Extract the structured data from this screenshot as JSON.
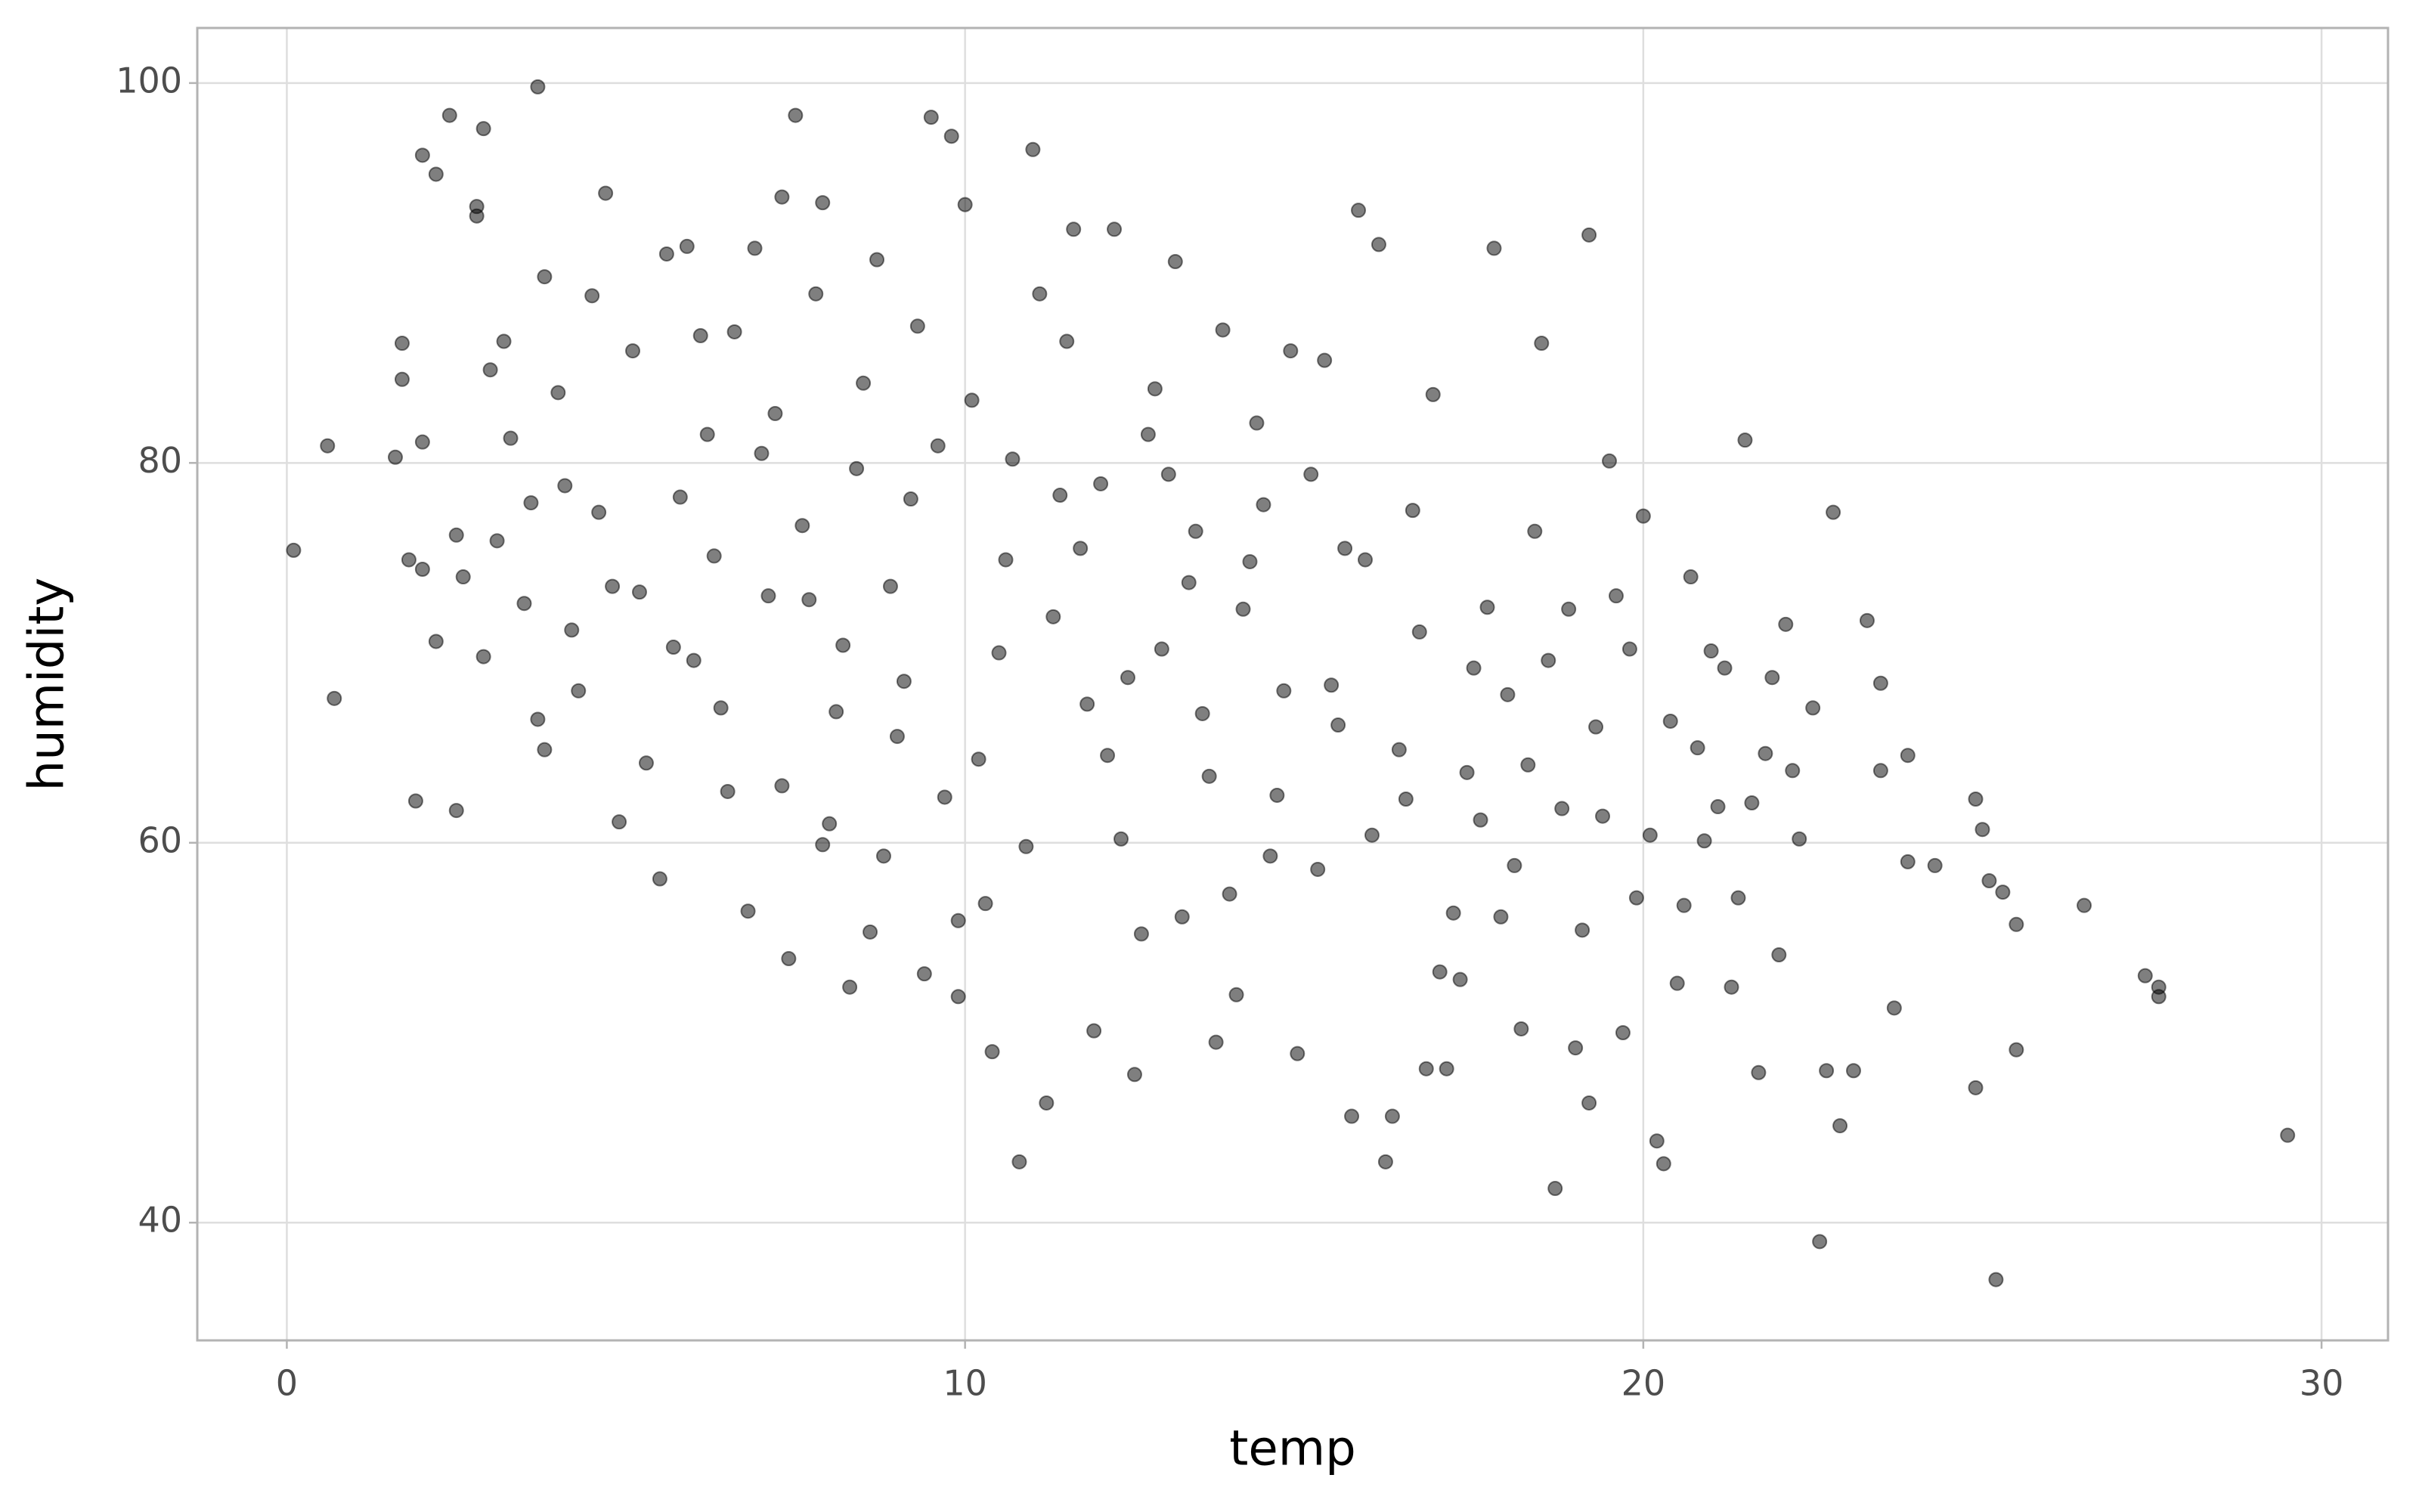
{
  "chart_data": {
    "type": "scatter",
    "xlabel": "temp",
    "ylabel": "humidity",
    "color": "#000000",
    "opacity": 0.5,
    "grid": true,
    "xlim": [
      -1.32,
      30.98
    ],
    "ylim": [
      33.8,
      102.9
    ],
    "xticks": [
      0,
      10,
      20,
      30
    ],
    "yticks": [
      40,
      60,
      80,
      100
    ],
    "x": [
      0.1,
      0.6,
      0.7,
      1.6,
      1.7,
      1.7,
      1.8,
      1.9,
      2.0,
      2.0,
      2.0,
      2.2,
      2.2,
      2.4,
      2.5,
      2.5,
      2.6,
      2.8,
      2.8,
      2.9,
      2.9,
      3.0,
      3.2,
      3.3,
      3.6,
      3.7,
      3.8,
      3.7,
      3.8,
      4.0,
      4.2,
      4.5,
      4.6,
      4.7,
      4.9,
      4.3,
      3.5,
      4.1,
      4.8,
      3.1,
      5.1,
      5.2,
      5.3,
      5.5,
      5.6,
      5.7,
      5.9,
      6.1,
      6.3,
      6.4,
      6.5,
      6.6,
      6.8,
      6.9,
      7.0,
      7.1,
      7.3,
      7.3,
      7.4,
      7.5,
      7.6,
      7.8,
      7.9,
      8.0,
      8.2,
      8.3,
      8.5,
      8.6,
      8.7,
      8.9,
      9.0,
      9.2,
      9.4,
      9.5,
      9.6,
      9.8,
      9.9,
      9.9,
      9.7,
      8.8,
      5.8,
      6.2,
      7.2,
      7.7,
      8.1,
      8.4,
      9.1,
      9.3,
      6.0,
      7.9,
      10.1,
      10.2,
      10.4,
      10.6,
      10.8,
      10.9,
      11.0,
      11.3,
      11.2,
      11.5,
      11.6,
      11.8,
      11.9,
      12.0,
      12.2,
      12.3,
      12.5,
      12.7,
      12.9,
      13.1,
      13.2,
      13.4,
      13.6,
      13.8,
      14.0,
      14.1,
      14.3,
      14.5,
      14.7,
      14.9,
      10.3,
      10.7,
      11.1,
      11.7,
      12.4,
      12.8,
      13.3,
      13.9,
      14.4,
      14.8,
      10.0,
      10.5,
      11.4,
      12.1,
      12.6,
      13.0,
      13.5,
      14.2,
      14.6,
      13.7,
      15.1,
      15.3,
      15.5,
      15.7,
      15.9,
      16.1,
      16.3,
      16.5,
      16.7,
      16.9,
      17.1,
      17.3,
      17.5,
      17.7,
      17.9,
      18.1,
      18.3,
      18.5,
      18.7,
      18.9,
      19.1,
      19.3,
      19.5,
      19.7,
      19.9,
      15.2,
      15.8,
      16.2,
      16.8,
      17.2,
      17.8,
      18.2,
      18.4,
      18.8,
      19.2,
      19.6,
      15.4,
      16.0,
      16.6,
      17.6,
      18.0,
      18.6,
      19.0,
      19.4,
      19.8,
      15.6,
      16.4,
      17.0,
      17.4,
      19.2,
      20.1,
      20.3,
      20.5,
      20.7,
      20.9,
      21.1,
      21.3,
      21.5,
      21.7,
      21.9,
      22.1,
      22.3,
      22.5,
      22.6,
      22.7,
      22.8,
      23.1,
      23.3,
      23.5,
      23.7,
      23.9,
      24.3,
      23.9,
      20.2,
      20.6,
      21.0,
      21.4,
      22.0,
      22.9,
      23.5,
      20.4,
      20.8,
      21.2,
      21.6,
      22.2,
      24.9,
      24.9,
      25.0,
      20.0,
      21.8,
      25.2,
      25.1,
      25.3,
      25.5,
      25.5,
      26.5,
      27.4,
      27.6,
      27.6,
      29.5
    ],
    "values": [
      75.4,
      80.9,
      67.6,
      80.3,
      84.4,
      86.3,
      74.9,
      62.2,
      74.4,
      81.1,
      96.2,
      95.2,
      70.6,
      98.3,
      76.2,
      61.7,
      74.0,
      93.5,
      93.0,
      97.6,
      69.8,
      84.9,
      86.4,
      81.3,
      77.9,
      66.5,
      64.9,
      99.8,
      89.8,
      83.7,
      71.2,
      88.8,
      77.4,
      94.2,
      61.1,
      68.0,
      72.6,
      78.8,
      73.5,
      75.9,
      85.9,
      73.2,
      64.2,
      58.1,
      91.0,
      70.3,
      91.4,
      86.7,
      75.1,
      67.1,
      62.7,
      86.9,
      56.4,
      91.3,
      80.5,
      73.0,
      94.0,
      63.0,
      53.9,
      98.3,
      76.7,
      88.9,
      93.7,
      61.0,
      70.4,
      52.4,
      84.2,
      55.3,
      90.7,
      73.5,
      65.6,
      78.1,
      53.1,
      98.2,
      80.9,
      97.2,
      55.9,
      51.9,
      62.4,
      59.3,
      78.2,
      81.5,
      82.6,
      72.8,
      66.9,
      79.7,
      68.5,
      87.2,
      69.6,
      59.9,
      83.3,
      64.4,
      49.0,
      74.9,
      43.2,
      59.8,
      96.5,
      71.9,
      46.3,
      86.4,
      92.3,
      67.3,
      50.1,
      78.9,
      92.3,
      60.2,
      47.8,
      81.5,
      70.2,
      90.6,
      56.1,
      76.4,
      63.5,
      87.0,
      52.0,
      72.3,
      82.1,
      59.3,
      68.0,
      48.9,
      56.8,
      80.2,
      88.9,
      75.5,
      68.7,
      83.9,
      73.7,
      57.3,
      77.8,
      85.9,
      93.6,
      70.0,
      78.3,
      64.6,
      55.2,
      79.4,
      66.8,
      74.8,
      62.5,
      49.5,
      79.4,
      85.4,
      66.2,
      45.6,
      74.9,
      91.5,
      45.6,
      62.3,
      71.1,
      83.6,
      48.1,
      52.8,
      69.2,
      72.4,
      56.1,
      58.8,
      64.1,
      86.3,
      41.8,
      72.3,
      55.4,
      66.1,
      80.1,
      50.0,
      57.1,
      58.6,
      93.3,
      43.2,
      48.1,
      56.3,
      91.3,
      50.2,
      76.4,
      61.8,
      92.0,
      73.0,
      68.3,
      60.4,
      77.5,
      61.2,
      67.8,
      69.6,
      49.2,
      61.4,
      70.2,
      75.5,
      64.9,
      53.2,
      63.7,
      46.3,
      60.4,
      43.1,
      52.6,
      74.0,
      60.1,
      61.9,
      52.4,
      81.2,
      47.9,
      68.7,
      71.5,
      60.2,
      67.1,
      39.0,
      48.0,
      77.4,
      48.0,
      71.7,
      68.4,
      51.3,
      64.6,
      58.8,
      59.0,
      44.3,
      56.7,
      70.1,
      57.1,
      54.1,
      45.1,
      63.8,
      66.4,
      65.0,
      69.2,
      62.1,
      63.8,
      47.1,
      62.3,
      60.7,
      77.2,
      64.7,
      37.0,
      58.0,
      57.4,
      49.1,
      55.7,
      56.7,
      53.0,
      52.4,
      51.9,
      44.6
    ]
  }
}
